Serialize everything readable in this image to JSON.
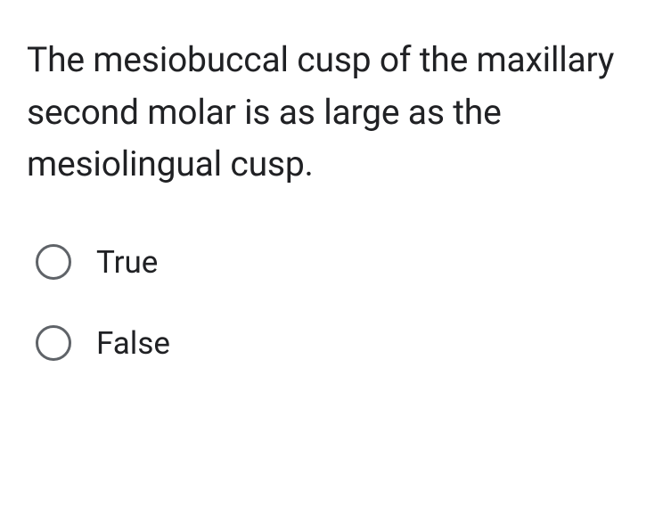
{
  "question": {
    "text": "The mesiobuccal cusp of the maxillary second molar is as large as the mesiolingual cusp.",
    "text_color": "#202124",
    "font_size": 39,
    "line_height": 1.5
  },
  "options": [
    {
      "label": "True",
      "selected": false
    },
    {
      "label": "False",
      "selected": false
    }
  ],
  "styling": {
    "background_color": "#ffffff",
    "radio_border_color": "#5f6368",
    "radio_size": 40,
    "radio_border_width": 3,
    "option_font_size": 35,
    "option_text_color": "#202124",
    "option_gap": 50
  }
}
